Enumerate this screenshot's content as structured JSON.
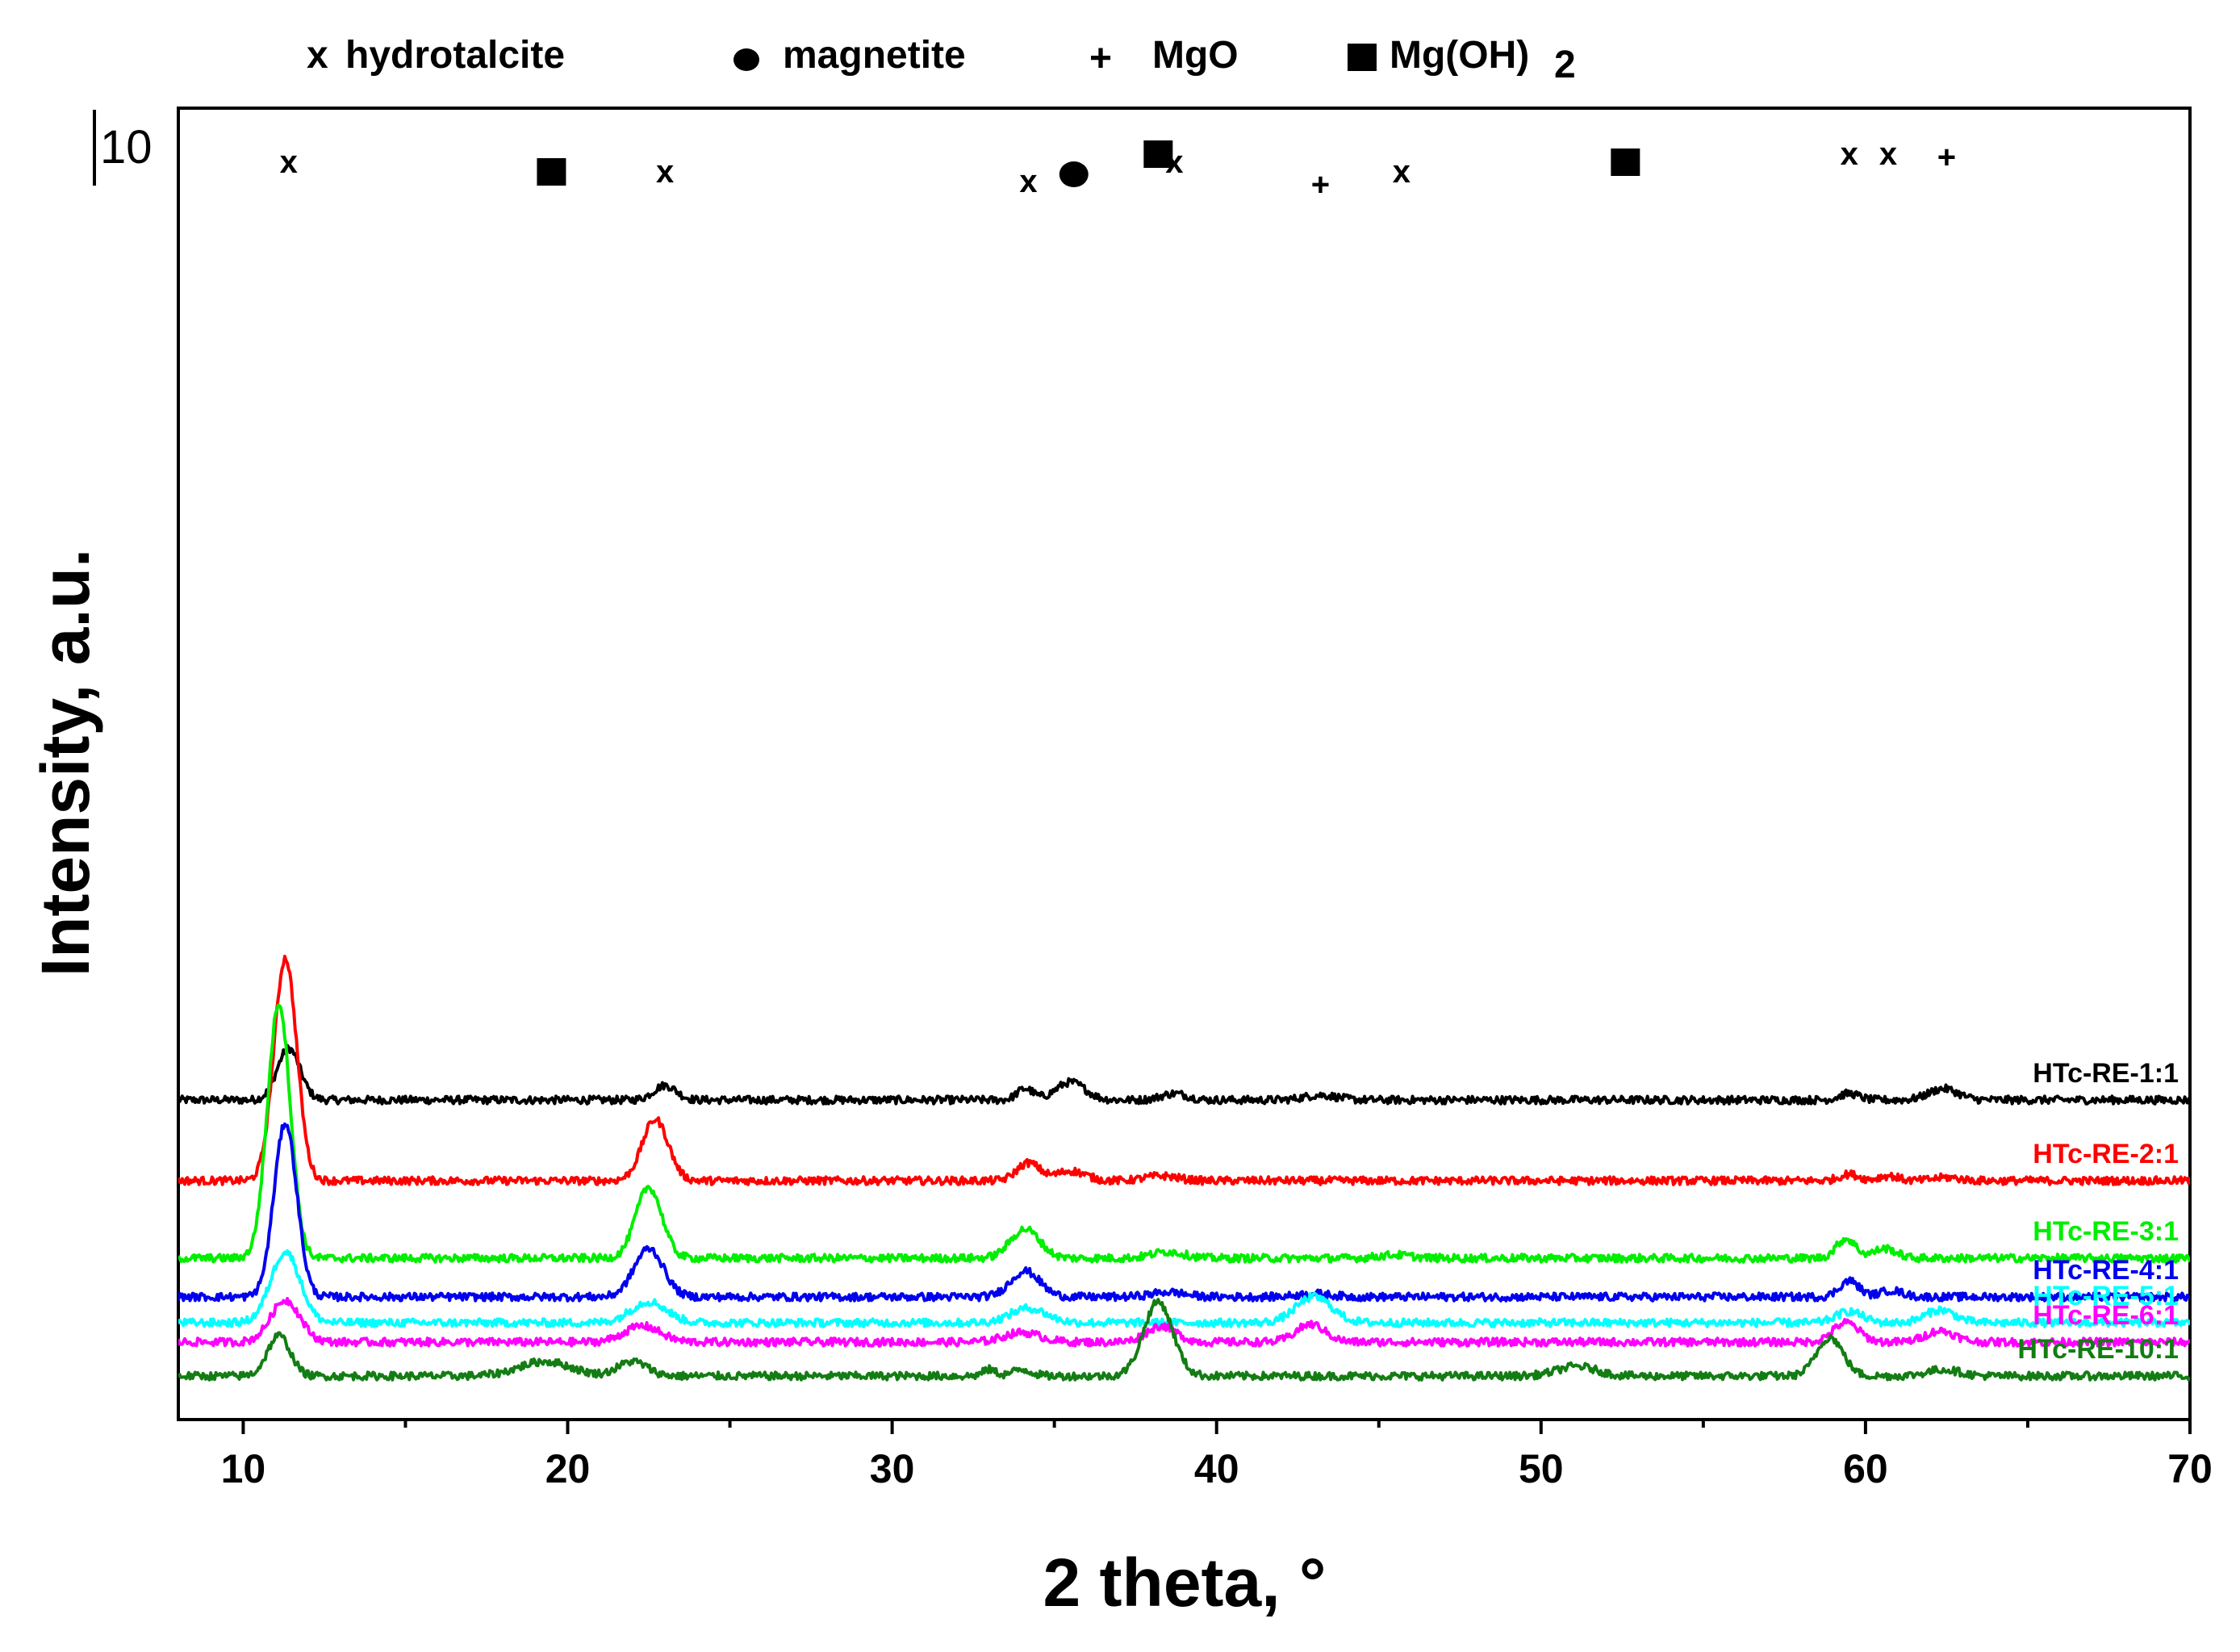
{
  "chart_data": {
    "type": "line",
    "title": "",
    "xlabel": "2 theta, °",
    "ylabel": "Intensity, a.u.",
    "xlim": [
      8,
      70
    ],
    "xticks": [
      10,
      20,
      30,
      40,
      50,
      60,
      70
    ],
    "scale_bar_label": "10",
    "legend": [
      {
        "symbol": "x",
        "label": "hydrotalcite"
      },
      {
        "symbol": "circle",
        "label": "magnetite"
      },
      {
        "symbol": "+",
        "label": "MgO"
      },
      {
        "symbol": "square",
        "label": "Mg(OH)",
        "subscript": "2"
      }
    ],
    "phase_markers": [
      {
        "symbol": "x",
        "x": 11.4
      },
      {
        "symbol": "x",
        "x": 23.0
      },
      {
        "symbol": "x",
        "x": 34.2
      },
      {
        "symbol": "x",
        "x": 38.7
      },
      {
        "symbol": "x",
        "x": 45.7
      },
      {
        "symbol": "x",
        "x": 59.5
      },
      {
        "symbol": "x",
        "x": 60.7
      },
      {
        "symbol": "circle",
        "x": 35.6
      },
      {
        "symbol": "+",
        "x": 43.2
      },
      {
        "symbol": "+",
        "x": 62.5
      },
      {
        "symbol": "square",
        "x": 19.5
      },
      {
        "symbol": "square",
        "x": 38.2
      },
      {
        "symbol": "square",
        "x": 52.6
      }
    ],
    "series": [
      {
        "name": "HTc-RE-1:1",
        "color": "#000000",
        "baseline": 8.9,
        "noise": 0.12,
        "peaks": [
          [
            11.4,
            1.6,
            0.35
          ],
          [
            23.0,
            0.45,
            0.35
          ],
          [
            34.1,
            0.35,
            0.25
          ],
          [
            35.5,
            0.55,
            0.45
          ],
          [
            38.7,
            0.2,
            0.4
          ],
          [
            43.2,
            0.15,
            0.5
          ],
          [
            59.5,
            0.2,
            0.3
          ],
          [
            62.4,
            0.35,
            0.45
          ]
        ]
      },
      {
        "name": "HTc-RE-2:1",
        "color": "#ff0000",
        "baseline": 6.4,
        "noise": 0.12,
        "peaks": [
          [
            11.3,
            6.9,
            0.35
          ],
          [
            22.7,
            1.9,
            0.4
          ],
          [
            34.2,
            0.55,
            0.35
          ],
          [
            35.5,
            0.3,
            0.45
          ],
          [
            38.3,
            0.15,
            0.5
          ],
          [
            59.5,
            0.2,
            0.3
          ],
          [
            60.7,
            0.15,
            0.3
          ],
          [
            62.5,
            0.1,
            0.4
          ]
        ]
      },
      {
        "name": "HTc-RE-3:1",
        "color": "#00ee00",
        "baseline": 4.0,
        "noise": 0.12,
        "peaks": [
          [
            11.1,
            7.9,
            0.35
          ],
          [
            22.5,
            2.2,
            0.4
          ],
          [
            34.1,
            0.9,
            0.45
          ],
          [
            38.5,
            0.2,
            0.5
          ],
          [
            45.5,
            0.1,
            0.5
          ],
          [
            59.4,
            0.6,
            0.3
          ],
          [
            60.6,
            0.3,
            0.35
          ]
        ]
      },
      {
        "name": "HTc-RE-4:1",
        "color": "#0000ee",
        "baseline": 2.8,
        "noise": 0.12,
        "peaks": [
          [
            11.3,
            5.4,
            0.35
          ],
          [
            22.5,
            1.5,
            0.45
          ],
          [
            34.1,
            0.8,
            0.45
          ],
          [
            38.5,
            0.15,
            0.5
          ],
          [
            43.0,
            0.1,
            0.5
          ],
          [
            59.5,
            0.5,
            0.3
          ],
          [
            60.8,
            0.2,
            0.35
          ]
        ]
      },
      {
        "name": "HTc-RE-5:1",
        "color": "#00ffff",
        "baseline": 2.0,
        "noise": 0.12,
        "peaks": [
          [
            11.3,
            2.2,
            0.45
          ],
          [
            22.5,
            0.65,
            0.55
          ],
          [
            34.2,
            0.45,
            0.55
          ],
          [
            43.0,
            0.8,
            0.55
          ],
          [
            59.5,
            0.35,
            0.4
          ],
          [
            62.3,
            0.4,
            0.45
          ]
        ]
      },
      {
        "name": "HTc-RE-6:1",
        "color": "#ff00ff",
        "baseline": 1.4,
        "noise": 0.12,
        "peaks": [
          [
            11.3,
            1.3,
            0.45
          ],
          [
            22.3,
            0.5,
            0.55
          ],
          [
            34.0,
            0.3,
            0.55
          ],
          [
            38.3,
            0.5,
            0.45
          ],
          [
            42.9,
            0.55,
            0.45
          ],
          [
            59.4,
            0.6,
            0.4
          ],
          [
            62.3,
            0.35,
            0.45
          ]
        ]
      },
      {
        "name": "HTc-RE-10:1",
        "color": "#137d13",
        "baseline": 0.35,
        "noise": 0.12,
        "peaks": [
          [
            11.1,
            1.25,
            0.35
          ],
          [
            19.3,
            0.45,
            0.8
          ],
          [
            22.0,
            0.45,
            0.45
          ],
          [
            33.0,
            0.2,
            0.2
          ],
          [
            34.0,
            0.2,
            0.3
          ],
          [
            38.2,
            2.3,
            0.45
          ],
          [
            51.1,
            0.3,
            0.6
          ],
          [
            58.9,
            1.2,
            0.4
          ],
          [
            62.4,
            0.2,
            0.5
          ]
        ]
      }
    ]
  }
}
